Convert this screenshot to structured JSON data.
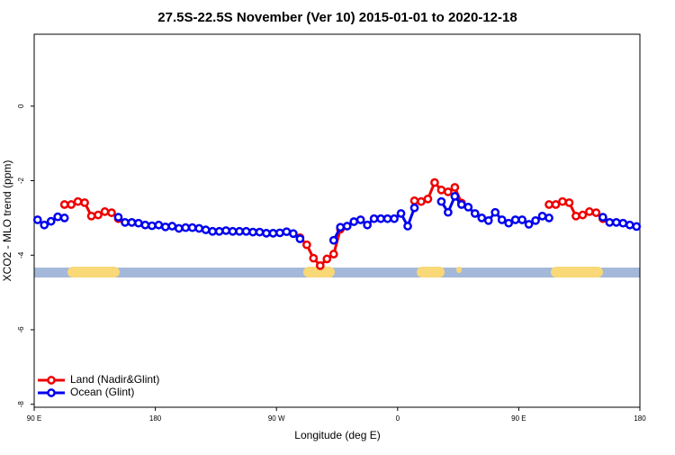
{
  "chart_data": {
    "type": "line",
    "title": "27.5S-22.5S November (Ver 10)   2015-01-01 to 2020-12-18",
    "x_label": "Longitude (deg E)",
    "y_label": "XCO2 - MLO trend (ppm)",
    "x": [
      92.5,
      97.5,
      102.5,
      107.5,
      112.5,
      117.5,
      122.5,
      127.5,
      132.5,
      137.5,
      142.5,
      147.5,
      152.5,
      157.5,
      162.5,
      167.5,
      172.5,
      177.5,
      182.5,
      187.5,
      192.5,
      197.5,
      202.5,
      207.5,
      212.5,
      217.5,
      222.5,
      227.5,
      232.5,
      237.5,
      242.5,
      247.5,
      252.5,
      257.5,
      262.5,
      267.5,
      272.5,
      277.5,
      282.5,
      287.5,
      292.5,
      297.5,
      302.5,
      307.5,
      312.5,
      317.5,
      322.5,
      327.5,
      332.5,
      337.5,
      342.5,
      347.5,
      352.5,
      357.5,
      362.5,
      367.5,
      372.5,
      377.5,
      382.5,
      387.5,
      392.5,
      397.5,
      402.5,
      407.5,
      412.5,
      417.5,
      422.5,
      427.5,
      432.5,
      437.5,
      442.5,
      447.5,
      452.5,
      457.5,
      462.5,
      467.5,
      472.5,
      477.5,
      482.5,
      487.5,
      492.5,
      497.5,
      502.5,
      507.5,
      512.5,
      517.5,
      522.5,
      527.5,
      532.5,
      537.5
    ],
    "series": [
      {
        "name": "Land (Nadir&Glint)",
        "color": "#ee0000",
        "values": [
          null,
          null,
          null,
          null,
          -2.64,
          -2.64,
          -2.56,
          -2.59,
          -2.95,
          -2.92,
          -2.83,
          -2.86,
          -3.02,
          null,
          null,
          null,
          null,
          null,
          null,
          null,
          null,
          null,
          null,
          null,
          null,
          null,
          null,
          null,
          null,
          null,
          null,
          null,
          null,
          null,
          null,
          null,
          null,
          null,
          null,
          -3.53,
          -3.72,
          -4.08,
          -4.28,
          -4.1,
          -3.97,
          -3.3,
          null,
          null,
          null,
          null,
          null,
          null,
          null,
          null,
          null,
          null,
          -2.54,
          -2.56,
          -2.49,
          -2.05,
          -2.25,
          -2.3,
          -2.18,
          -2.6,
          null,
          null,
          null,
          null,
          null,
          null,
          null,
          null,
          null,
          null,
          null,
          null,
          -2.64,
          -2.64,
          -2.56,
          -2.59,
          -2.95,
          -2.92,
          -2.83,
          -2.86,
          -3.02,
          null,
          null,
          null,
          null,
          null
        ]
      },
      {
        "name": "Ocean (Glint)",
        "color": "#0000ee",
        "values": [
          -3.05,
          -3.19,
          -3.09,
          -2.97,
          -3.0,
          null,
          null,
          null,
          null,
          null,
          null,
          null,
          -2.98,
          -3.12,
          -3.12,
          -3.14,
          -3.19,
          -3.21,
          -3.19,
          -3.24,
          -3.22,
          -3.28,
          -3.26,
          -3.26,
          -3.28,
          -3.32,
          -3.36,
          -3.36,
          -3.34,
          -3.36,
          -3.36,
          -3.36,
          -3.38,
          -3.38,
          -3.41,
          -3.41,
          -3.4,
          -3.37,
          -3.42,
          -3.56,
          null,
          null,
          null,
          null,
          -3.6,
          -3.25,
          -3.22,
          -3.1,
          -3.05,
          -3.19,
          -3.02,
          -3.02,
          -3.02,
          -3.02,
          -2.88,
          -3.22,
          -2.73,
          null,
          null,
          null,
          -2.56,
          -2.85,
          -2.42,
          -2.64,
          -2.71,
          -2.88,
          -3.0,
          -3.07,
          -2.85,
          -3.05,
          -3.14,
          -3.05,
          -3.05,
          -3.17,
          -3.07,
          -2.95,
          -3.0,
          null,
          null,
          null,
          null,
          null,
          null,
          null,
          -2.98,
          -3.12,
          -3.12,
          -3.14,
          -3.19,
          -3.23
        ]
      }
    ],
    "xlim": [
      90,
      540
    ],
    "xticks": [
      {
        "value": 90,
        "label": "90 E"
      },
      180,
      {
        "value": 270,
        "label": "90 W"
      },
      {
        "value": 360,
        "label": "0"
      },
      {
        "value": 450,
        "label": "90 E"
      },
      {
        "value": 540,
        "label": "180"
      }
    ],
    "ylim": [
      -8.08,
      1.93
    ],
    "yticks": [
      0,
      -2,
      -4,
      -6,
      -8
    ],
    "legend": "bottom-left"
  }
}
